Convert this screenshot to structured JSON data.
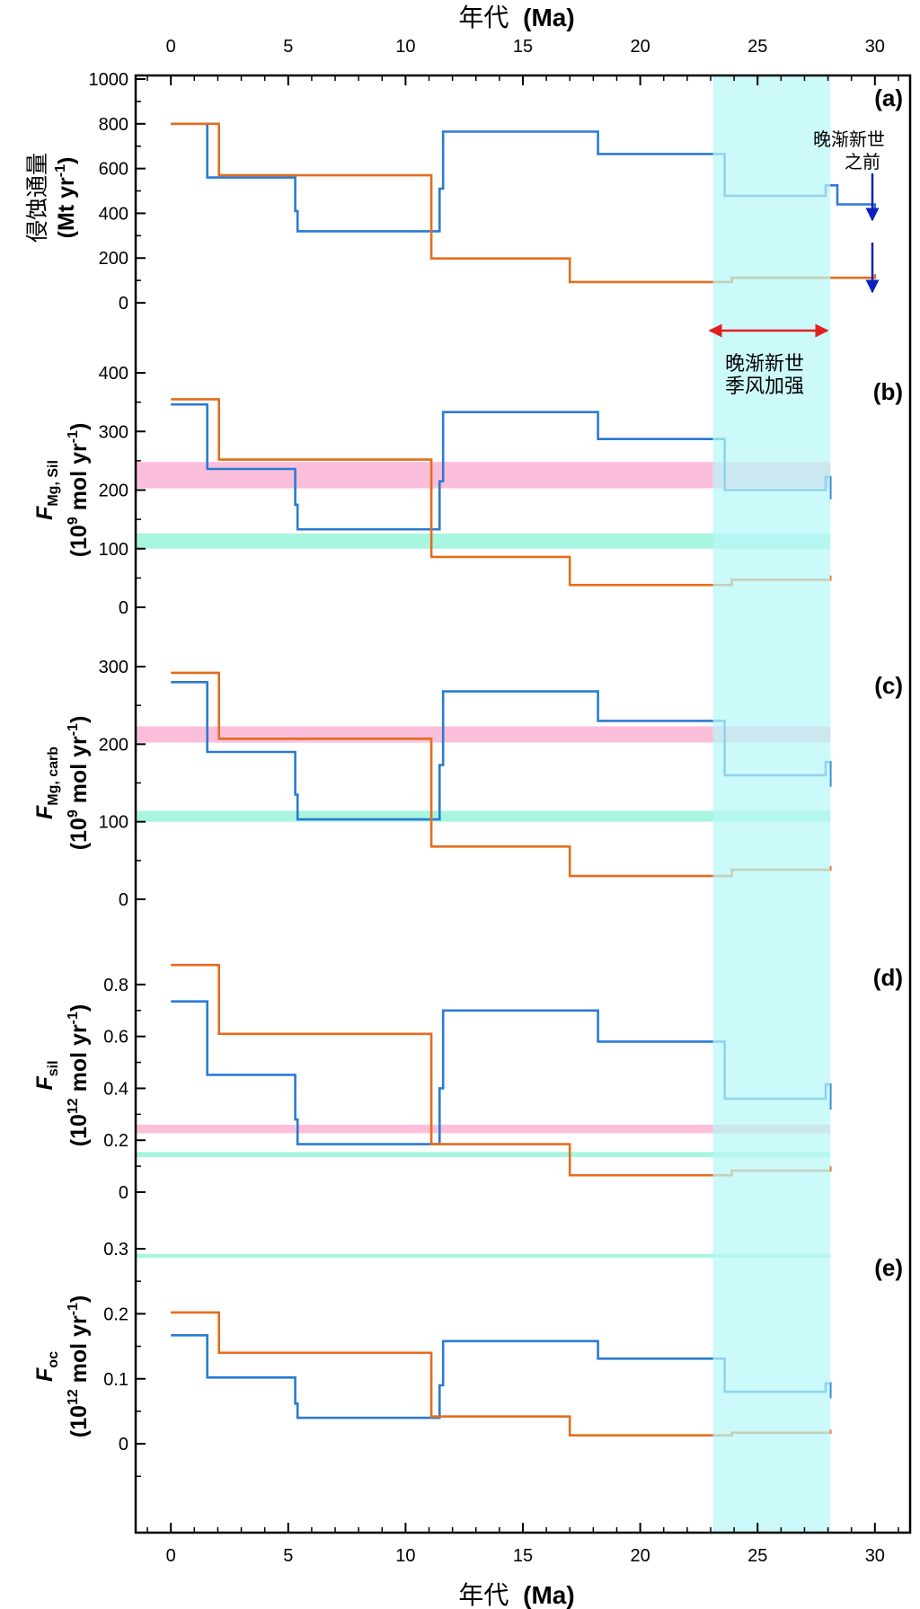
{
  "chart_data": {
    "type": "line",
    "step": true,
    "x_axis": {
      "label_cn": "年代",
      "label_unit": "(Ma)",
      "range": [
        -1.5,
        31.5
      ],
      "ticks": [
        0,
        5,
        10,
        15,
        20,
        25,
        30
      ],
      "tick_labels": [
        "0",
        "5",
        "10",
        "15",
        "20",
        "25",
        "30"
      ]
    },
    "highlight": {
      "x_range": [
        23.1,
        28.1
      ],
      "color": "#b8f6f8"
    },
    "colors": {
      "blue": "#2a7bd2",
      "orange": "#e46d1c",
      "pink": "#fbbfdc",
      "green": "#a8f6e0",
      "annot_blue": "#1020c0",
      "annot_red": "#e02020"
    },
    "annotations": {
      "pre_oligocene_line1": "晚渐新世",
      "pre_oligocene_line2": "之前",
      "monsoon_line1": "晚渐新世",
      "monsoon_line2": "季风加强"
    },
    "panels": [
      {
        "label": "(a)",
        "ylabel": [
          {
            "t": "侵蚀通量"
          },
          {
            "t": "(Mt yr",
            "sup": "-1",
            "after": ")",
            "bold": true
          }
        ],
        "ylim": [
          -60,
          1000
        ],
        "yticks": [
          0,
          200,
          400,
          600,
          800,
          1000
        ],
        "ytick_labels": [
          "0",
          "200",
          "400",
          "600",
          "800",
          "1000"
        ],
        "bands": [],
        "series": [
          {
            "color": "blue",
            "x": [
              0,
              1.55,
              5.2,
              5.3,
              5.4,
              11.1,
              11.45,
              11.6,
              16.3,
              18.2,
              23.6,
              27.9,
              28.4,
              30
            ],
            "y": [
              800,
              560,
              560,
              410,
              320,
              320,
              510,
              765,
              765,
              665,
              478,
              525,
              440,
              397
            ]
          },
          {
            "color": "orange",
            "x": [
              0,
              2.05,
              5.1,
              11.1,
              17.0,
              23.9,
              30
            ],
            "y": [
              800,
              570,
              570,
              198,
              93,
              112,
              128
            ]
          }
        ]
      },
      {
        "label": "(b)",
        "ylabel": [
          {
            "t": "F",
            "sub": "Mg, Sil",
            "italic": true,
            "bold": true
          },
          {
            "t": "(10",
            "sup": "9",
            "after": " mol yr",
            "sup2": "-1",
            "after2": ")",
            "bold": true
          }
        ],
        "ylim": [
          0,
          400
        ],
        "yticks": [
          0,
          100,
          200,
          300,
          400
        ],
        "ytick_labels": [
          "0",
          "100",
          "200",
          "300",
          "400"
        ],
        "bands": [
          {
            "color": "pink",
            "y1": 203,
            "y2": 248
          },
          {
            "color": "green",
            "y1": 100,
            "y2": 126
          }
        ],
        "series": [
          {
            "color": "blue",
            "x": [
              0,
              1.55,
              5.2,
              5.3,
              5.4,
              11.1,
              11.45,
              11.6,
              16.3,
              18.2,
              23.6,
              27.9,
              28.1
            ],
            "y": [
              346,
              236,
              236,
              175,
              133,
              133,
              215,
              333,
              333,
              287,
              200,
              222,
              184
            ]
          },
          {
            "color": "orange",
            "x": [
              0,
              2.05,
              5.1,
              11.1,
              17.0,
              23.9,
              28.1
            ],
            "y": [
              355,
              252,
              252,
              86,
              38,
              47,
              54
            ]
          }
        ]
      },
      {
        "label": "(c)",
        "ylabel": [
          {
            "t": "F",
            "sub": "Mg, carb",
            "italic": true,
            "bold": true
          },
          {
            "t": "(10",
            "sup": "9",
            "after": " mol yr",
            "sup2": "-1",
            "after2": ")",
            "bold": true
          }
        ],
        "ylim": [
          0,
          300
        ],
        "yticks": [
          0,
          100,
          200,
          300
        ],
        "ytick_labels": [
          "0",
          "100",
          "200",
          "300"
        ],
        "bands": [
          {
            "color": "pink",
            "y1": 202,
            "y2": 223
          },
          {
            "color": "green",
            "y1": 100,
            "y2": 114
          }
        ],
        "series": [
          {
            "color": "blue",
            "x": [
              0,
              1.55,
              5.2,
              5.3,
              5.4,
              11.1,
              11.45,
              11.6,
              16.3,
              18.2,
              23.6,
              27.9,
              28.1
            ],
            "y": [
              280,
              190,
              190,
              135,
              103,
              103,
              173,
              268,
              268,
              230,
              160,
              177,
              145
            ]
          },
          {
            "color": "orange",
            "x": [
              0,
              2.05,
              5.1,
              11.1,
              17.0,
              23.9,
              28.1
            ],
            "y": [
              292,
              207,
              207,
              68,
              30,
              38,
              43
            ]
          }
        ]
      },
      {
        "label": "(d)",
        "ylabel": [
          {
            "t": "F",
            "sub": "sil",
            "italic": true,
            "bold": true
          },
          {
            "t": "(10",
            "sup": "12",
            "after": " mol yr",
            "sup2": "-1",
            "after2": ")",
            "bold": true
          }
        ],
        "ylim": [
          0,
          0.9
        ],
        "yticks": [
          0,
          0.2,
          0.4,
          0.6,
          0.8
        ],
        "ytick_labels": [
          "0",
          "0.2",
          "0.4",
          "0.6",
          "0.8"
        ],
        "bands": [
          {
            "color": "pink",
            "y1": 0.227,
            "y2": 0.26
          },
          {
            "color": "green",
            "y1": 0.135,
            "y2": 0.155
          }
        ],
        "series": [
          {
            "color": "blue",
            "x": [
              0,
              1.55,
              5.2,
              5.3,
              5.4,
              11.1,
              11.45,
              11.6,
              16.3,
              18.2,
              23.6,
              27.9,
              28.1
            ],
            "y": [
              0.735,
              0.452,
              0.452,
              0.28,
              0.185,
              0.185,
              0.4,
              0.7,
              0.7,
              0.58,
              0.36,
              0.415,
              0.318
            ]
          },
          {
            "color": "orange",
            "x": [
              0,
              2.05,
              5.1,
              11.1,
              17.0,
              23.9,
              28.1
            ],
            "y": [
              0.875,
              0.61,
              0.61,
              0.185,
              0.065,
              0.083,
              0.1
            ]
          }
        ]
      },
      {
        "label": "(e)",
        "ylabel": [
          {
            "t": "F",
            "sub": "oc",
            "italic": true,
            "bold": true
          },
          {
            "t": "(10",
            "sup": "12",
            "after": " mol yr",
            "sup2": "-1",
            "after2": ")",
            "bold": true
          }
        ],
        "ylim": [
          -0.062,
          0.3
        ],
        "yticks": [
          0,
          0.1,
          0.2,
          0.3
        ],
        "ytick_labels": [
          "0",
          "0.1",
          "0.2",
          "0.3"
        ],
        "bands": [
          {
            "color": "green",
            "y1": 0.286,
            "y2": 0.292
          }
        ],
        "series": [
          {
            "color": "blue",
            "x": [
              0,
              1.55,
              5.2,
              5.3,
              5.4,
              11.1,
              11.45,
              11.6,
              16.3,
              18.2,
              23.6,
              27.9,
              28.1
            ],
            "y": [
              0.167,
              0.102,
              0.102,
              0.062,
              0.04,
              0.04,
              0.09,
              0.158,
              0.158,
              0.131,
              0.08,
              0.093,
              0.07
            ]
          },
          {
            "color": "orange",
            "x": [
              0,
              2.05,
              5.1,
              11.1,
              17.0,
              23.9,
              28.1
            ],
            "y": [
              0.202,
              0.14,
              0.14,
              0.042,
              0.013,
              0.017,
              0.022
            ]
          }
        ]
      }
    ]
  }
}
